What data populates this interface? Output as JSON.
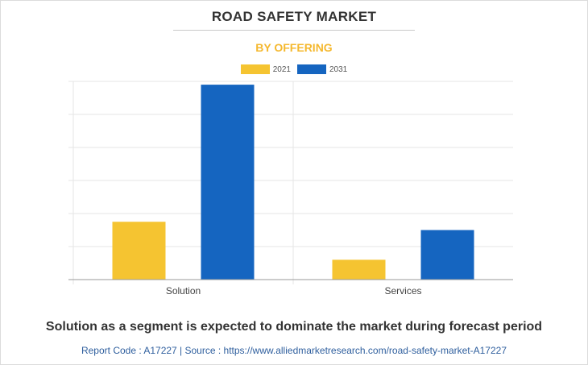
{
  "title": "ROAD SAFETY MARKET",
  "subtitle": "BY OFFERING",
  "caption": "Solution as a segment is expected to dominate the market during forecast period",
  "source": "Report Code : A17227  |  Source : https://www.alliedmarketresearch.com/road-safety-market-A17227",
  "colors": {
    "subtitle": "#f5b82e",
    "series_2021": "#f5c431",
    "series_2031": "#1565c0",
    "grid": "#e6e6e6",
    "axis": "#999999"
  },
  "chart_data": {
    "type": "bar",
    "title": "ROAD SAFETY MARKET",
    "subtitle": "BY OFFERING",
    "categories": [
      "Solution",
      "Services"
    ],
    "series": [
      {
        "name": "2021",
        "values": [
          17.5,
          6.0
        ]
      },
      {
        "name": "2031",
        "values": [
          59.0,
          15.0
        ]
      }
    ],
    "ylim": [
      0,
      60
    ],
    "grid": true,
    "legend_position": "top-center"
  }
}
